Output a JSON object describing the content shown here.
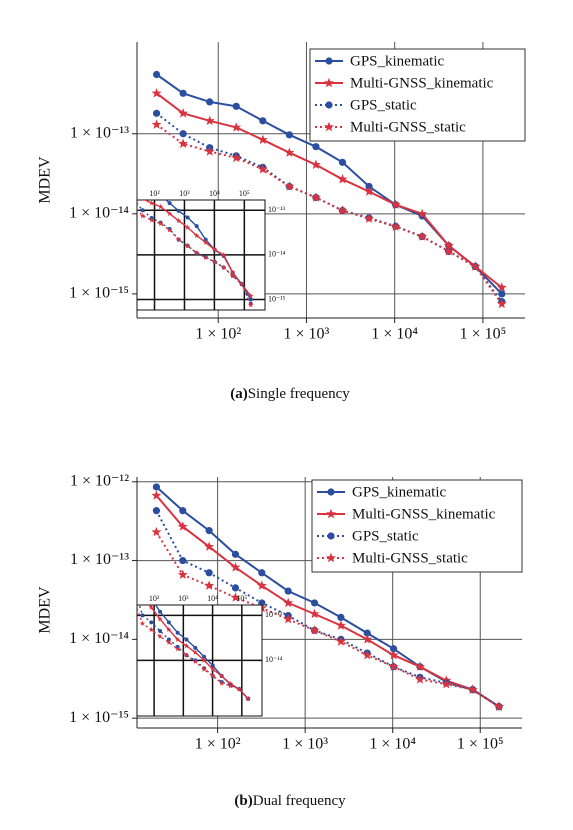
{
  "chart_data": [
    {
      "type": "line",
      "xscale": "log",
      "yscale": "log",
      "ylabel": "MDEV",
      "panel": "(a)",
      "caption": "Single frequency",
      "xlim": [
        12,
        300000
      ],
      "ylim": [
        5e-16,
        1.4e-12
      ],
      "xticks": [
        {
          "value": 100,
          "label": "1 × 10²"
        },
        {
          "value": 1000,
          "label": "1 × 10³"
        },
        {
          "value": 10000,
          "label": "1 × 10⁴"
        },
        {
          "value": 100000,
          "label": "1 × 10⁵"
        }
      ],
      "yticks": [
        {
          "value": 1e-15,
          "label": "1 × 10⁻¹⁵"
        },
        {
          "value": 1e-14,
          "label": "1 × 10⁻¹⁴"
        },
        {
          "value": 1e-13,
          "label": "1 × 10⁻¹³"
        }
      ],
      "grid": true,
      "legend": "upper right",
      "x": [
        20,
        40,
        80,
        160,
        320,
        640,
        1280,
        2560,
        5120,
        10240,
        20480,
        40960,
        81920,
        163840
      ],
      "series": [
        {
          "name": "GPS_kinematic",
          "color": "#2b4f9f",
          "linestyle": "solid",
          "marker": "circle",
          "values": [
            5.5e-13,
            3.2e-13,
            2.5e-13,
            2.2e-13,
            1.45e-13,
            9.7e-14,
            6.9e-14,
            4.4e-14,
            2.2e-14,
            1.3e-14,
            9.4e-15,
            4e-15,
            2.2e-15,
            1e-15
          ]
        },
        {
          "name": "Multi-GNSS_kinematic",
          "color": "#d9333f",
          "linestyle": "solid",
          "marker": "star",
          "values": [
            3.2e-13,
            1.8e-13,
            1.45e-13,
            1.2e-13,
            8.4e-14,
            5.8e-14,
            4.1e-14,
            2.7e-14,
            1.9e-14,
            1.3e-14,
            1e-14,
            4e-15,
            2.2e-15,
            1.2e-15
          ]
        },
        {
          "name": "GPS_static",
          "color": "#2b4f9f",
          "linestyle": "dotted",
          "marker": "circle",
          "values": [
            1.8e-13,
            1e-13,
            6.7e-14,
            5.3e-14,
            3.8e-14,
            2.2e-14,
            1.6e-14,
            1.1e-14,
            8.9e-15,
            7e-15,
            5.2e-15,
            3.4e-15,
            2.2e-15,
            8e-16
          ]
        },
        {
          "name": "Multi-GNSS_static",
          "color": "#d9333f",
          "linestyle": "dotted",
          "marker": "star",
          "values": [
            1.3e-13,
            7.5e-14,
            6e-14,
            5e-14,
            3.6e-14,
            2.2e-14,
            1.6e-14,
            1.1e-14,
            8.7e-15,
            6.9e-15,
            5.2e-15,
            3.4e-15,
            2.2e-15,
            7.5e-16
          ]
        }
      ],
      "inset": {
        "xlim": [
          26,
          490000
        ],
        "ylim": [
          5.8e-16,
          1.7e-13
        ],
        "xticks": [
          {
            "value": 100,
            "label": "10²"
          },
          {
            "value": 1000,
            "label": "10³"
          },
          {
            "value": 10000,
            "label": "10⁴"
          },
          {
            "value": 100000,
            "label": "10⁵"
          }
        ],
        "yticks": [
          {
            "value": 1e-13,
            "label": "10⁻¹³"
          },
          {
            "value": 1e-14,
            "label": "10⁻¹⁴"
          },
          {
            "value": 1e-15,
            "label": "10⁻¹⁵"
          }
        ]
      }
    },
    {
      "type": "line",
      "xscale": "log",
      "yscale": "log",
      "ylabel": "MDEV",
      "panel": "(b)",
      "caption": "Dual frequency",
      "xlim": [
        12,
        300000
      ],
      "ylim": [
        7.5e-16,
        1.15e-12
      ],
      "xticks": [
        {
          "value": 100,
          "label": "1 × 10²"
        },
        {
          "value": 1000,
          "label": "1 × 10³"
        },
        {
          "value": 10000,
          "label": "1 × 10⁴"
        },
        {
          "value": 100000,
          "label": "1 × 10⁵"
        }
      ],
      "yticks": [
        {
          "value": 1e-15,
          "label": "1 × 10⁻¹⁵"
        },
        {
          "value": 1e-14,
          "label": "1 × 10⁻¹⁴"
        },
        {
          "value": 1e-13,
          "label": "1 × 10⁻¹³"
        },
        {
          "value": 1e-12,
          "label": "1 × 10⁻¹²"
        }
      ],
      "grid": true,
      "legend": "upper right",
      "x": [
        20,
        40,
        80,
        160,
        320,
        640,
        1280,
        2560,
        5120,
        10240,
        20480,
        40960,
        81920,
        163840
      ],
      "series": [
        {
          "name": "GPS_kinematic",
          "color": "#2b4f9f",
          "linestyle": "solid",
          "marker": "circle",
          "values": [
            8.6e-13,
            4.3e-13,
            2.4e-13,
            1.2e-13,
            7e-14,
            4.1e-14,
            2.9e-14,
            1.9e-14,
            1.2e-14,
            7.6e-15,
            4.5e-15,
            2.9e-15,
            2.3e-15,
            1.4e-15
          ]
        },
        {
          "name": "Multi-GNSS_kinematic",
          "color": "#d9333f",
          "linestyle": "solid",
          "marker": "star",
          "values": [
            6.7e-13,
            2.7e-13,
            1.5e-13,
            8.2e-14,
            4.8e-14,
            2.9e-14,
            2.1e-14,
            1.5e-14,
            1e-14,
            6.3e-15,
            4.5e-15,
            3e-15,
            2.3e-15,
            1.4e-15
          ]
        },
        {
          "name": "GPS_static",
          "color": "#2b4f9f",
          "linestyle": "dotted",
          "marker": "circle",
          "values": [
            4.3e-13,
            1e-13,
            7e-14,
            4.5e-14,
            2.9e-14,
            2e-14,
            1.3e-14,
            1e-14,
            6.7e-15,
            4.5e-15,
            3.3e-15,
            2.8e-15,
            2.3e-15,
            1.4e-15
          ]
        },
        {
          "name": "Multi-GNSS_static",
          "color": "#d9333f",
          "linestyle": "dotted",
          "marker": "star",
          "values": [
            2.3e-13,
            6.6e-14,
            4.8e-14,
            3.4e-14,
            2.5e-14,
            1.8e-14,
            1.3e-14,
            9.4e-15,
            6.3e-15,
            4.5e-15,
            3.1e-15,
            2.7e-15,
            2.3e-15,
            1.4e-15
          ]
        }
      ],
      "inset": {
        "xlim": [
          26,
          490000
        ],
        "ylim": [
          5.8e-16,
          1.7e-13
        ],
        "xticks": [
          {
            "value": 100,
            "label": "10²"
          },
          {
            "value": 1000,
            "label": "10³"
          },
          {
            "value": 10000,
            "label": "10⁴"
          },
          {
            "value": 100000,
            "label": "10⁵"
          }
        ],
        "yticks": [
          {
            "value": 1e-13,
            "label": "10⁻¹³"
          },
          {
            "value": 1e-14,
            "label": "10⁻¹⁴"
          }
        ]
      }
    }
  ]
}
